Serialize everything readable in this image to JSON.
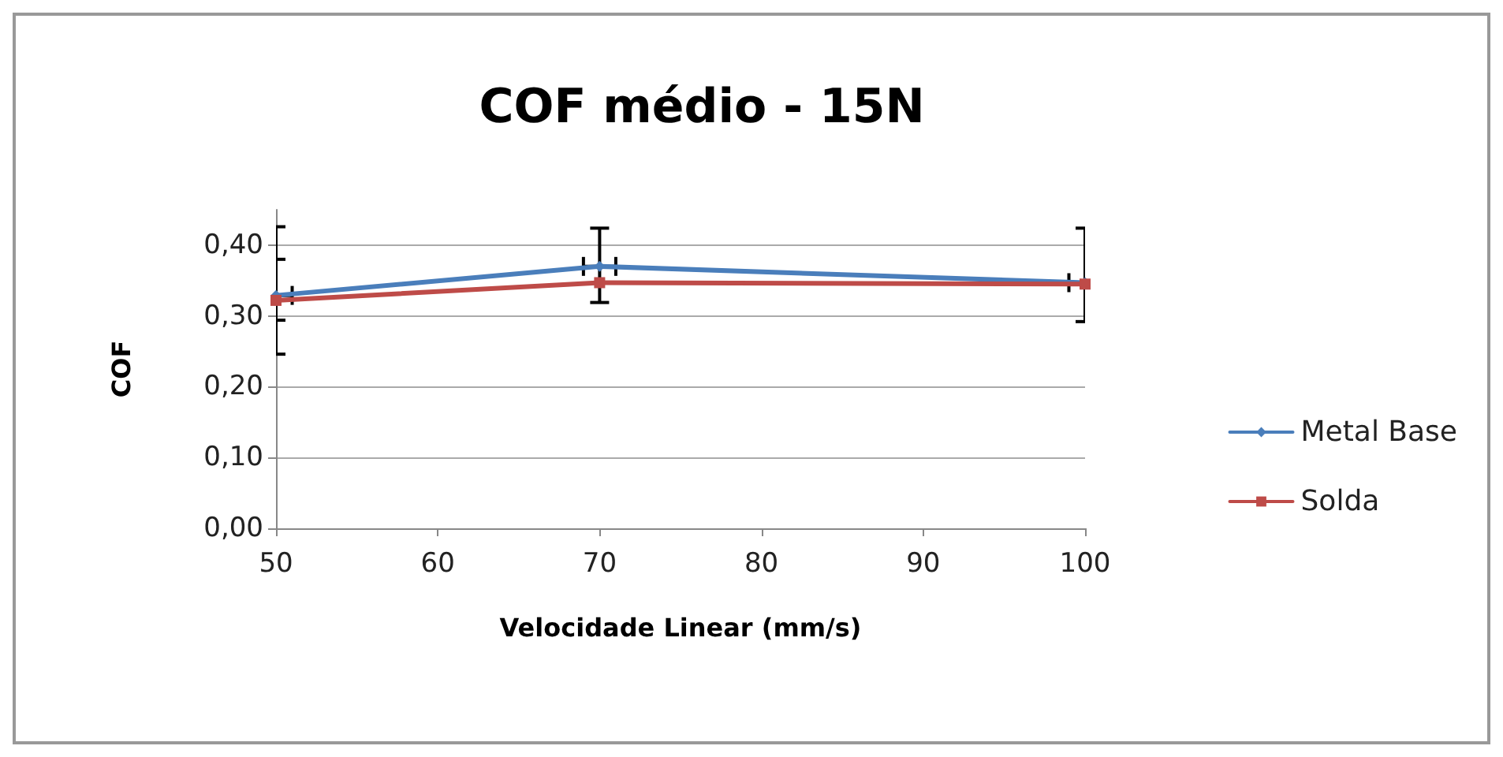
{
  "chart_data": {
    "type": "line",
    "title": "COF médio - 15N",
    "xlabel": "Velocidade Linear (mm/s)",
    "ylabel": "COF",
    "x": [
      50,
      70,
      100
    ],
    "series": [
      {
        "name": "Metal Base",
        "color": "#4a7ebb",
        "marker": "diamond",
        "values": [
          0.329,
          0.37,
          0.347
        ],
        "errors": [
          [
            0.294,
            0.38
          ],
          [
            0.319,
            0.424
          ],
          null
        ],
        "xerrors": [
          1,
          1,
          1
        ]
      },
      {
        "name": "Solda",
        "color": "#be4b48",
        "marker": "square",
        "values": [
          0.322,
          0.347,
          0.345
        ],
        "errors": [
          [
            0.246,
            0.426
          ],
          null,
          [
            0.292,
            0.424
          ]
        ]
      }
    ],
    "xlim": [
      50,
      100
    ],
    "xticks": [
      50,
      60,
      70,
      80,
      90,
      100
    ],
    "ylim": [
      0,
      0.45
    ],
    "yticks": [
      {
        "value": 0,
        "label": "0,00"
      },
      {
        "value": 0.1,
        "label": "0,10"
      },
      {
        "value": 0.2,
        "label": "0,20"
      },
      {
        "value": 0.3,
        "label": "0,30"
      },
      {
        "value": 0.4,
        "label": "0,40"
      }
    ],
    "grid": "y",
    "legend": "right",
    "line_style": "solid"
  }
}
